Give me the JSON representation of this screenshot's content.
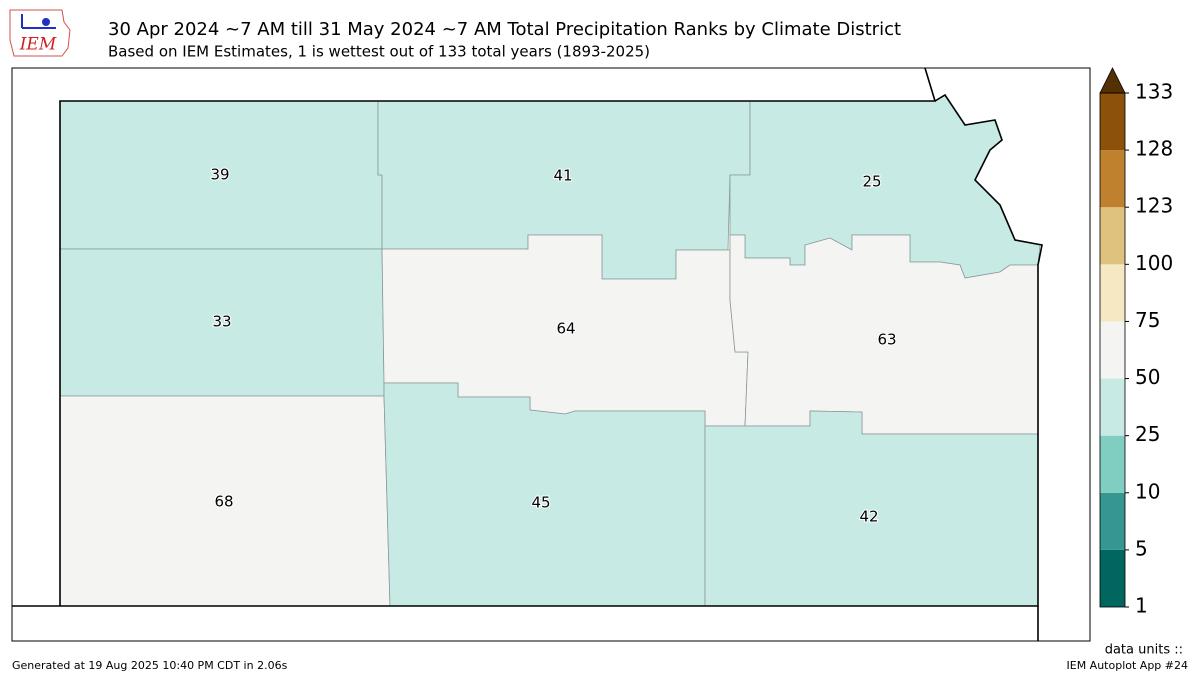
{
  "header": {
    "title": "30 Apr 2024 ~7 AM till 31 May 2024 ~7 AM Total Precipitation Ranks by Climate District",
    "subtitle": "Based on IEM Estimates, 1 is wettest out of 133 total years (1893-2025)"
  },
  "logo": "IEM",
  "districts": [
    39,
    41,
    25,
    33,
    64,
    63,
    68,
    45,
    42
  ],
  "colorbar": {
    "ticks": [
      1,
      5,
      10,
      25,
      50,
      75,
      100,
      123,
      128,
      133
    ],
    "colors": [
      "#01665e",
      "#35978f",
      "#80cdc1",
      "#c7eae5",
      "#f4f4f2",
      "#f6e8c3",
      "#dfc27d",
      "#bf812d",
      "#8c510a"
    ],
    "extend_color": "#543005",
    "units_label": "data units ::"
  },
  "footer": {
    "generated": "Generated at 19 Aug 2025 10:40 PM CDT in 2.06s",
    "app": "IEM Autoplot App #24"
  }
}
